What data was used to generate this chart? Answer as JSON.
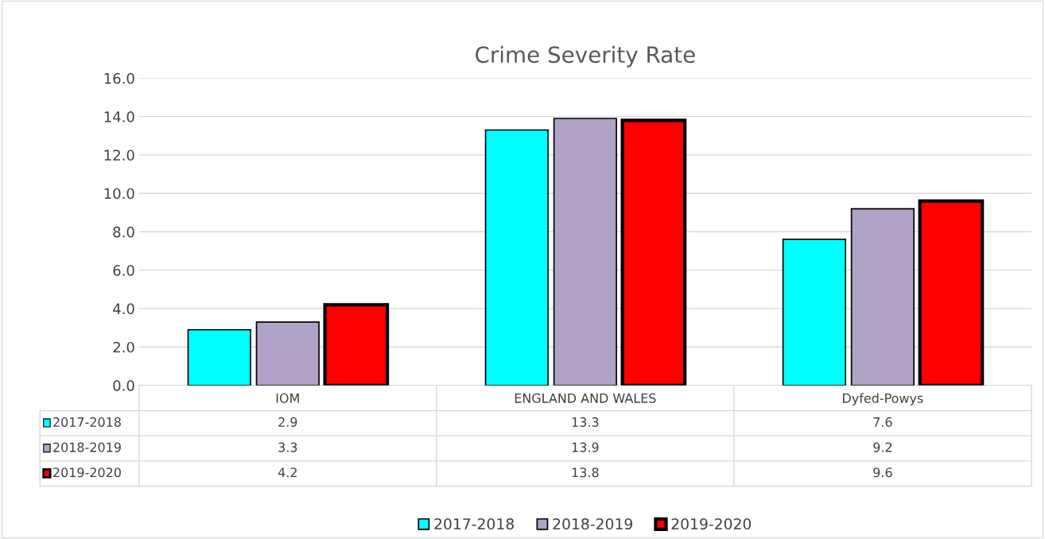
{
  "chart_data": {
    "type": "bar",
    "title": "Crime Severity Rate",
    "categories": [
      "IOM",
      "ENGLAND AND WALES",
      "Dyfed-Powys"
    ],
    "series": [
      {
        "name": "2017-2018",
        "color": "#00ffff",
        "values": [
          2.9,
          13.3,
          7.6
        ]
      },
      {
        "name": "2018-2019",
        "color": "#b1a2c8",
        "values": [
          3.3,
          13.9,
          9.2
        ]
      },
      {
        "name": "2019-2020",
        "color": "#ff0000",
        "values": [
          4.2,
          13.8,
          9.6
        ]
      }
    ],
    "ylim": [
      0,
      16
    ],
    "yticks": [
      {
        "value": 0,
        "label": "0.0"
      },
      {
        "value": 2,
        "label": "2.0"
      },
      {
        "value": 4,
        "label": "4.0"
      },
      {
        "value": 6,
        "label": "6.0"
      },
      {
        "value": 8,
        "label": "8.0"
      },
      {
        "value": 10,
        "label": "10.0"
      },
      {
        "value": 12,
        "label": "12.0"
      },
      {
        "value": 14,
        "label": "14.0"
      },
      {
        "value": 16,
        "label": "16.0"
      }
    ],
    "grid": "y",
    "legend": "bottom",
    "data_labels": true
  }
}
